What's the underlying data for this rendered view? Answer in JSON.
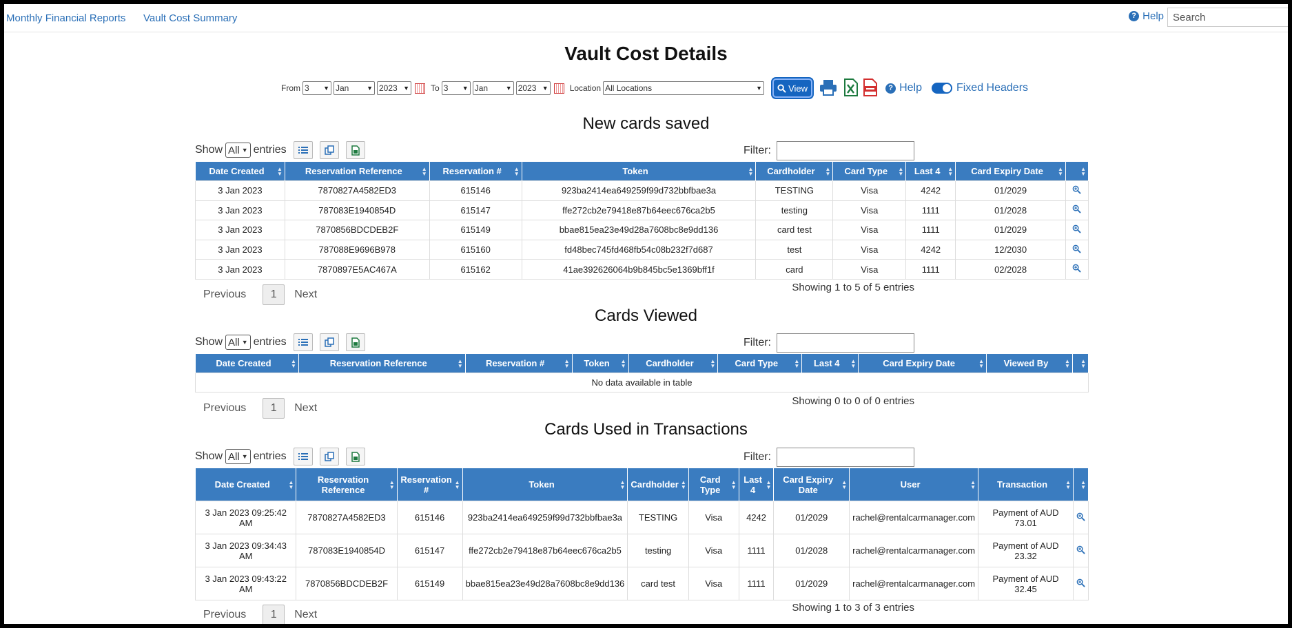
{
  "nav": {
    "link1": "Monthly Financial Reports",
    "link2": "Vault Cost Summary",
    "help": "Help",
    "search_placeholder": "Search"
  },
  "page": {
    "title": "Vault Cost Details"
  },
  "filters": {
    "from_label": "From",
    "from_day": "3",
    "from_month": "Jan",
    "from_year": "2023",
    "to_label": "To",
    "to_day": "3",
    "to_month": "Jan",
    "to_year": "2023",
    "location_label": "Location",
    "location_value": "All Locations",
    "view_label": "View",
    "help_label": "Help",
    "fixed_headers_label": "Fixed Headers"
  },
  "common": {
    "show": "Show",
    "show_value": "All",
    "entries": "entries",
    "filter": "Filter:",
    "previous": "Previous",
    "page": "1",
    "next": "Next"
  },
  "new_cards": {
    "title": "New cards saved",
    "headers": [
      "Date Created",
      "Reservation Reference",
      "Reservation #",
      "Token",
      "Cardholder",
      "Card Type",
      "Last 4",
      "Card Expiry Date"
    ],
    "rows": [
      [
        "3 Jan 2023",
        "7870827A4582ED3",
        "615146",
        "923ba2414ea649259f99d732bbfbae3a",
        "TESTING",
        "Visa",
        "4242",
        "01/2029"
      ],
      [
        "3 Jan 2023",
        "787083E1940854D",
        "615147",
        "ffe272cb2e79418e87b64eec676ca2b5",
        "testing",
        "Visa",
        "1111",
        "01/2028"
      ],
      [
        "3 Jan 2023",
        "7870856BDCDEB2F",
        "615149",
        "bbae815ea23e49d28a7608bc8e9dd136",
        "card test",
        "Visa",
        "1111",
        "01/2029"
      ],
      [
        "3 Jan 2023",
        "787088E9696B978",
        "615160",
        "fd48bec745fd468fb54c08b232f7d687",
        "test",
        "Visa",
        "4242",
        "12/2030"
      ],
      [
        "3 Jan 2023",
        "7870897E5AC467A",
        "615162",
        "41ae392626064b9b845bc5e1369bff1f",
        "card",
        "Visa",
        "1111",
        "02/2028"
      ]
    ],
    "info": "Showing 1 to 5 of 5 entries"
  },
  "cards_viewed": {
    "title": "Cards Viewed",
    "headers": [
      "Date Created",
      "Reservation Reference",
      "Reservation #",
      "Token",
      "Cardholder",
      "Card Type",
      "Last 4",
      "Card Expiry Date",
      "Viewed By"
    ],
    "empty": "No data available in table",
    "info": "Showing 0 to 0 of 0 entries"
  },
  "cards_used": {
    "title": "Cards Used in Transactions",
    "headers": [
      "Date Created",
      "Reservation Reference",
      "Reservation #",
      "Token",
      "Cardholder",
      "Card Type",
      "Last 4",
      "Card Expiry Date",
      "User",
      "Transaction"
    ],
    "rows": [
      [
        "3 Jan 2023 09:25:42 AM",
        "7870827A4582ED3",
        "615146",
        "923ba2414ea649259f99d732bbfbae3a",
        "TESTING",
        "Visa",
        "4242",
        "01/2029",
        "rachel@rentalcarmanager.com",
        "Payment of AUD 73.01"
      ],
      [
        "3 Jan 2023 09:34:43 AM",
        "787083E1940854D",
        "615147",
        "ffe272cb2e79418e87b64eec676ca2b5",
        "testing",
        "Visa",
        "1111",
        "01/2028",
        "rachel@rentalcarmanager.com",
        "Payment of AUD 23.32"
      ],
      [
        "3 Jan 2023 09:43:22 AM",
        "7870856BDCDEB2F",
        "615149",
        "bbae815ea23e49d28a7608bc8e9dd136",
        "card test",
        "Visa",
        "1111",
        "01/2029",
        "rachel@rentalcarmanager.com",
        "Payment of AUD 32.45"
      ]
    ],
    "info": "Showing 1 to 3 of 3 entries"
  }
}
